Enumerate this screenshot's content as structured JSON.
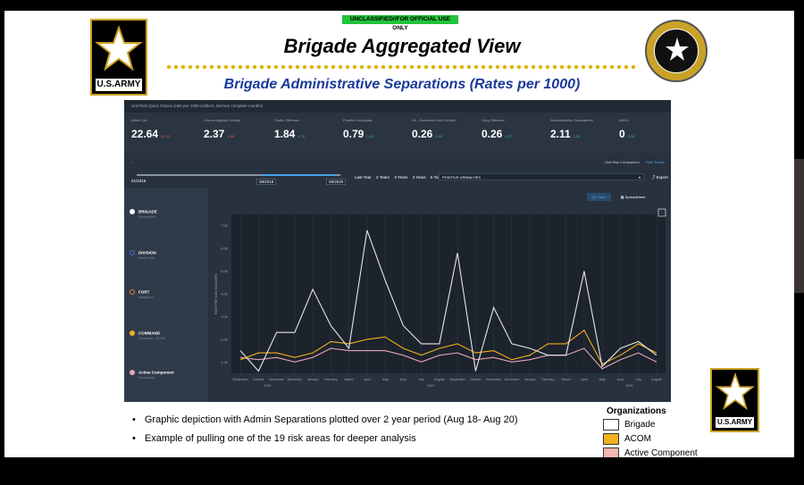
{
  "classification": "UNCLASSIFIED//FOR OFFICIAL USE ONLY",
  "logo": {
    "text": "U.S.ARMY"
  },
  "slide": {
    "title": "Brigade Aggregated View",
    "subtitle": "Brigade Administrative Separations (Rates per 1000)"
  },
  "dashboard": {
    "header_text": "Unit Risk Quick Glance (rate per 1000 soldiers, last two complete months)",
    "kpis": [
      {
        "label": "Allele 13a",
        "value": "22.64",
        "delta": "19.22",
        "direction": "up"
      },
      {
        "label": "Crimes Against Society",
        "value": "2.37",
        "delta": "1.85",
        "direction": "up"
      },
      {
        "label": "Traffic Offenses",
        "value": "1.84",
        "delta": "1.79",
        "direction": "down"
      },
      {
        "label": "Positive Urinalysis",
        "value": "0.79",
        "delta": "0.12",
        "direction": "down"
      },
      {
        "label": "SA - Screened Not Enrolled",
        "value": "0.26",
        "delta": "2.03",
        "direction": "down"
      },
      {
        "label": "Drug Offenses",
        "value": "0.26",
        "delta": "0.27",
        "direction": "down"
      },
      {
        "label": "Administrative Separations",
        "value": "2.11",
        "delta": "1.26",
        "direction": "down"
      },
      {
        "label": "AWOL",
        "value": "0",
        "delta": "0.26",
        "direction": "down"
      }
    ],
    "tabs": {
      "comparison": "Unit Risk Comparison",
      "trends": "Risk Trends"
    },
    "timeline": {
      "start": "01/2018",
      "from": "08/2018",
      "to": "08/2020",
      "ranges": [
        "Last Year",
        "2 Years",
        "3 Years",
        "4 Years",
        "5 Years"
      ]
    },
    "metric_select": "POSITIVE URINALYSIS",
    "export_label": "Export",
    "view_buttons": {
      "chart": "Chart",
      "spreadsheet": "Spreadsheet"
    },
    "organizations": [
      {
        "name": "BRIGADE",
        "sub": "Current Unit",
        "color": "#ffffff"
      },
      {
        "name": "DIVISION",
        "sub": "Parent Unit",
        "color": "#4a6ae0"
      },
      {
        "name": "FORT",
        "sub": "Installation",
        "color": "#e8843a"
      },
      {
        "name": "COMMAND",
        "sub": "Command - ACOM",
        "color": "#f2b01e"
      },
      {
        "name": "Active Component",
        "sub": "Component",
        "color": "#e7a3b6"
      }
    ]
  },
  "chart_data": {
    "type": "line",
    "ylabel": "RATE PER 1000 SOLDIERS",
    "yticks": [
      "1.00",
      "2.00",
      "3.00",
      "4.00",
      "5.00",
      "6.00",
      "7.00"
    ],
    "ylim": [
      0.5,
      7.5
    ],
    "categories": [
      "September",
      "October",
      "November",
      "December",
      "January",
      "February",
      "March",
      "April",
      "May",
      "June",
      "July",
      "August",
      "September",
      "October",
      "November",
      "December",
      "January",
      "February",
      "March",
      "April",
      "May",
      "June",
      "July",
      "August"
    ],
    "year_labels": [
      "2018",
      "2019",
      "2020"
    ],
    "series": [
      {
        "name": "Brigade",
        "color": "#e6e6e6",
        "values": [
          1.5,
          0.6,
          2.3,
          2.3,
          4.2,
          2.6,
          1.6,
          6.8,
          4.6,
          2.6,
          1.8,
          1.8,
          5.8,
          0.6,
          3.4,
          1.8,
          1.6,
          1.3,
          1.3,
          5.0,
          0.8,
          1.6,
          1.9,
          1.3
        ]
      },
      {
        "name": "ACOM",
        "color": "#f2b01e",
        "values": [
          1.1,
          1.4,
          1.4,
          1.2,
          1.4,
          1.9,
          1.8,
          2.0,
          2.1,
          1.6,
          1.3,
          1.6,
          1.8,
          1.4,
          1.5,
          1.1,
          1.3,
          1.8,
          1.8,
          2.4,
          0.9,
          1.3,
          1.8,
          1.4
        ]
      },
      {
        "name": "Active Component",
        "color": "#e7a3b6",
        "values": [
          1.2,
          1.1,
          1.2,
          1.0,
          1.2,
          1.6,
          1.5,
          1.5,
          1.5,
          1.3,
          1.0,
          1.3,
          1.4,
          1.1,
          1.2,
          1.0,
          1.1,
          1.3,
          1.3,
          1.6,
          0.7,
          1.1,
          1.4,
          1.0
        ]
      }
    ]
  },
  "bullets": [
    "Graphic depiction with Admin Separations plotted over 2 year period (Aug 18- Aug 20)",
    "Example of pulling one of the 19 risk areas for deeper analysis"
  ],
  "legend": {
    "title": "Organizations",
    "items": [
      {
        "label": "Brigade",
        "color": "#ffffff"
      },
      {
        "label": "ACOM",
        "color": "#f2b01e"
      },
      {
        "label": "Active Component",
        "color": "#f4b8b0"
      }
    ]
  }
}
